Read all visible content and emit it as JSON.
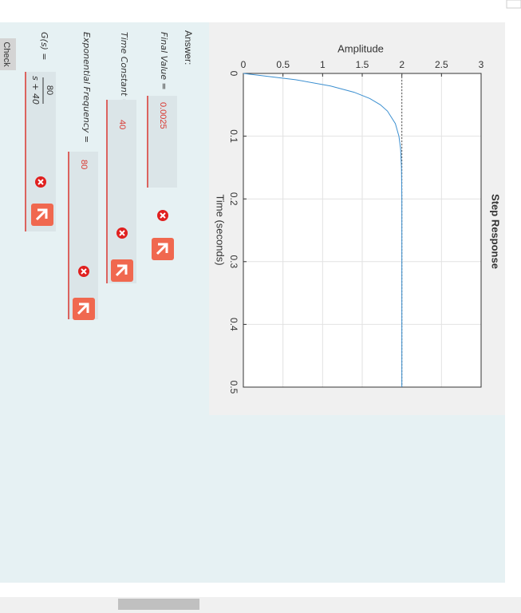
{
  "chart_data": {
    "type": "line",
    "title": "Step Response",
    "xlabel": "Time (seconds)",
    "ylabel": "Amplitude",
    "x": [
      0,
      0.01,
      0.02,
      0.03,
      0.04,
      0.05,
      0.06,
      0.08,
      0.1,
      0.12,
      0.15,
      0.2,
      0.3,
      0.4,
      0.5
    ],
    "series": [
      {
        "name": "Step",
        "color": "#3b8fd0",
        "values": [
          0,
          0.659,
          1.101,
          1.398,
          1.596,
          1.729,
          1.818,
          1.918,
          1.963,
          1.984,
          1.995,
          2.0,
          2.0,
          2.0,
          2.0
        ]
      }
    ],
    "steady_state": 2,
    "xlim": [
      0,
      0.5
    ],
    "xticks": [
      0,
      0.1,
      0.2,
      0.3,
      0.4,
      0.5
    ],
    "ylim": [
      0,
      3
    ],
    "yticks": [
      0,
      0.5,
      1,
      1.5,
      2,
      2.5,
      3
    ],
    "grid": true
  },
  "quiz": {
    "answer_label": "Answer:",
    "fields": [
      {
        "label": "Final Value  =",
        "value": "0.0025"
      },
      {
        "label": "Time Constant  =",
        "value": "40"
      },
      {
        "label": "Exponential Frequency =",
        "value": "80"
      }
    ],
    "gs_label": "G(s) =",
    "gs_numerator": "80",
    "gs_denominator": "s + 40",
    "check": "Check"
  }
}
